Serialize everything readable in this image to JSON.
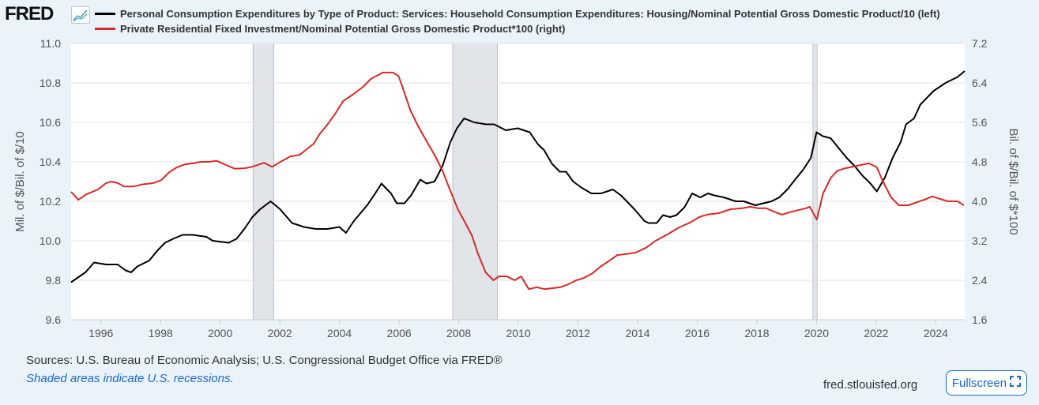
{
  "header": {
    "logo_text": "FRED",
    "legend": [
      {
        "label": "Personal Consumption Expenditures by Type of Product: Services: Household Consumption Expenditures: Housing/Nominal Potential Gross Domestic Product/10 (left)",
        "color": "#000000"
      },
      {
        "label": "Private Residential Fixed Investment/Nominal Potential Gross Domestic Product*100 (right)",
        "color": "#d62a2a"
      }
    ]
  },
  "chart_data": {
    "type": "line",
    "xlim": [
      1995,
      2024.97
    ],
    "x_ticks": [
      "1996",
      "1998",
      "2000",
      "2002",
      "2004",
      "2006",
      "2008",
      "2010",
      "2012",
      "2014",
      "2016",
      "2018",
      "2020",
      "2022",
      "2024"
    ],
    "left_axis": {
      "label": "Mil. of $/Bil. of $/10",
      "lim": [
        9.6,
        11.0
      ],
      "ticks": [
        "9.6",
        "9.8",
        "10.0",
        "10.2",
        "10.4",
        "10.6",
        "10.8",
        "11.0"
      ]
    },
    "right_axis": {
      "label": "Bil. of $/Bil. of $*100",
      "lim": [
        1.6,
        7.2
      ],
      "ticks": [
        "1.6",
        "2.4",
        "3.2",
        "4.0",
        "4.8",
        "5.6",
        "6.4",
        "7.2"
      ]
    },
    "grid": true,
    "recessions": [
      [
        2001.1,
        2001.8
      ],
      [
        2007.8,
        2009.3
      ],
      [
        2019.88,
        2020.02
      ]
    ],
    "series": [
      {
        "name": "Housing PCE / Potential GDP / 10",
        "axis": "left",
        "color": "#000000",
        "x": [
          1995.0,
          1995.48,
          1995.77,
          1996.17,
          1996.56,
          1996.83,
          1997.01,
          1997.22,
          1997.62,
          1997.89,
          1998.15,
          1998.42,
          1998.74,
          1999.09,
          1999.54,
          1999.75,
          2000.28,
          2000.55,
          2000.81,
          2001.08,
          2001.34,
          2001.69,
          2002.01,
          2002.41,
          2002.81,
          2003.2,
          2003.6,
          2004.0,
          2004.22,
          2004.48,
          2004.93,
          2005.2,
          2005.41,
          2005.73,
          2005.92,
          2006.18,
          2006.4,
          2006.71,
          2006.92,
          2007.19,
          2007.46,
          2007.72,
          2007.94,
          2008.18,
          2008.52,
          2008.92,
          2009.19,
          2009.58,
          2009.98,
          2010.38,
          2010.65,
          2010.86,
          2011.13,
          2011.39,
          2011.6,
          2011.84,
          2012.11,
          2012.45,
          2012.77,
          2013.17,
          2013.44,
          2013.7,
          2013.89,
          2014.23,
          2014.37,
          2014.64,
          2014.85,
          2015.09,
          2015.3,
          2015.57,
          2015.83,
          2016.1,
          2016.36,
          2016.57,
          2016.89,
          2017.29,
          2017.56,
          2017.95,
          2018.22,
          2018.49,
          2018.75,
          2019.02,
          2019.28,
          2019.55,
          2019.81,
          2020.0,
          2020.21,
          2020.47,
          2020.74,
          2021.01,
          2021.27,
          2021.54,
          2021.81,
          2022.02,
          2022.29,
          2022.55,
          2022.82,
          2023.0,
          2023.27,
          2023.48,
          2023.93,
          2024.33,
          2024.73,
          2024.97
        ],
        "values": [
          9.79,
          9.84,
          9.89,
          9.88,
          9.88,
          9.85,
          9.84,
          9.87,
          9.9,
          9.95,
          9.99,
          10.01,
          10.03,
          10.03,
          10.02,
          10.0,
          9.99,
          10.01,
          10.06,
          10.12,
          10.16,
          10.2,
          10.16,
          10.09,
          10.07,
          10.06,
          10.06,
          10.07,
          10.04,
          10.1,
          10.18,
          10.24,
          10.29,
          10.24,
          10.19,
          10.19,
          10.23,
          10.31,
          10.29,
          10.3,
          10.38,
          10.5,
          10.57,
          10.62,
          10.6,
          10.59,
          10.59,
          10.56,
          10.57,
          10.55,
          10.49,
          10.46,
          10.39,
          10.35,
          10.35,
          10.3,
          10.27,
          10.24,
          10.24,
          10.26,
          10.23,
          10.19,
          10.16,
          10.1,
          10.09,
          10.09,
          10.13,
          10.12,
          10.13,
          10.17,
          10.24,
          10.22,
          10.24,
          10.23,
          10.22,
          10.2,
          10.2,
          10.18,
          10.19,
          10.2,
          10.22,
          10.26,
          10.31,
          10.36,
          10.42,
          10.55,
          10.53,
          10.52,
          10.47,
          10.42,
          10.38,
          10.33,
          10.29,
          10.25,
          10.32,
          10.42,
          10.5,
          10.59,
          10.62,
          10.69,
          10.76,
          10.8,
          10.83,
          10.86
        ]
      },
      {
        "name": "Residential Investment / Potential GDP * 100",
        "axis": "right",
        "color": "#d62a2a",
        "x": [
          1995.0,
          1995.24,
          1995.5,
          1995.9,
          1996.17,
          1996.35,
          1996.56,
          1996.78,
          1997.09,
          1997.36,
          1997.76,
          1998.02,
          1998.29,
          1998.55,
          1998.82,
          1999.08,
          1999.35,
          1999.61,
          1999.88,
          2000.14,
          2000.49,
          2000.81,
          2001.07,
          2001.47,
          2001.74,
          2002.08,
          2002.35,
          2002.66,
          2002.93,
          2003.14,
          2003.33,
          2003.59,
          2003.86,
          2004.12,
          2004.44,
          2004.79,
          2005.05,
          2005.45,
          2005.79,
          2005.98,
          2006.11,
          2006.38,
          2006.64,
          2006.91,
          2007.17,
          2007.44,
          2007.7,
          2007.97,
          2008.23,
          2008.44,
          2008.63,
          2008.9,
          2009.16,
          2009.35,
          2009.61,
          2009.88,
          2010.09,
          2010.35,
          2010.62,
          2010.88,
          2011.15,
          2011.41,
          2011.68,
          2011.94,
          2012.21,
          2012.48,
          2012.74,
          2013.06,
          2013.32,
          2013.59,
          2013.93,
          2014.28,
          2014.6,
          2015.0,
          2015.39,
          2015.79,
          2016.06,
          2016.32,
          2016.72,
          2017.12,
          2017.51,
          2017.78,
          2018.04,
          2018.31,
          2018.57,
          2018.84,
          2019.1,
          2019.37,
          2019.64,
          2019.77,
          2020.01,
          2020.22,
          2020.48,
          2020.7,
          2020.96,
          2021.36,
          2021.76,
          2022.02,
          2022.23,
          2022.5,
          2022.76,
          2023.08,
          2023.35,
          2023.61,
          2023.88,
          2024.14,
          2024.41,
          2024.73,
          2024.94
        ],
        "values": [
          4.19,
          4.03,
          4.14,
          4.24,
          4.37,
          4.4,
          4.37,
          4.3,
          4.3,
          4.34,
          4.37,
          4.43,
          4.59,
          4.69,
          4.75,
          4.77,
          4.8,
          4.8,
          4.82,
          4.75,
          4.66,
          4.67,
          4.7,
          4.78,
          4.7,
          4.82,
          4.91,
          4.94,
          5.07,
          5.17,
          5.36,
          5.55,
          5.78,
          6.03,
          6.16,
          6.32,
          6.48,
          6.61,
          6.61,
          6.54,
          6.32,
          5.84,
          5.52,
          5.23,
          4.96,
          4.64,
          4.24,
          3.84,
          3.55,
          3.31,
          2.96,
          2.56,
          2.4,
          2.48,
          2.48,
          2.4,
          2.48,
          2.22,
          2.26,
          2.22,
          2.24,
          2.26,
          2.32,
          2.4,
          2.45,
          2.54,
          2.67,
          2.8,
          2.91,
          2.93,
          2.96,
          3.06,
          3.2,
          3.33,
          3.47,
          3.58,
          3.68,
          3.73,
          3.76,
          3.84,
          3.86,
          3.89,
          3.86,
          3.86,
          3.79,
          3.73,
          3.78,
          3.82,
          3.86,
          3.89,
          3.63,
          4.16,
          4.48,
          4.62,
          4.67,
          4.72,
          4.77,
          4.69,
          4.4,
          4.08,
          3.92,
          3.92,
          3.98,
          4.03,
          4.1,
          4.05,
          4.0,
          4.0,
          3.92
        ]
      }
    ]
  },
  "footer": {
    "sources": "Sources: U.S. Bureau of Economic Analysis; U.S. Congressional Budget Office via FRED®",
    "recession_note": "Shaded areas indicate U.S. recessions.",
    "site": "fred.stlouisfed.org",
    "fullscreen_label": "Fullscreen"
  }
}
